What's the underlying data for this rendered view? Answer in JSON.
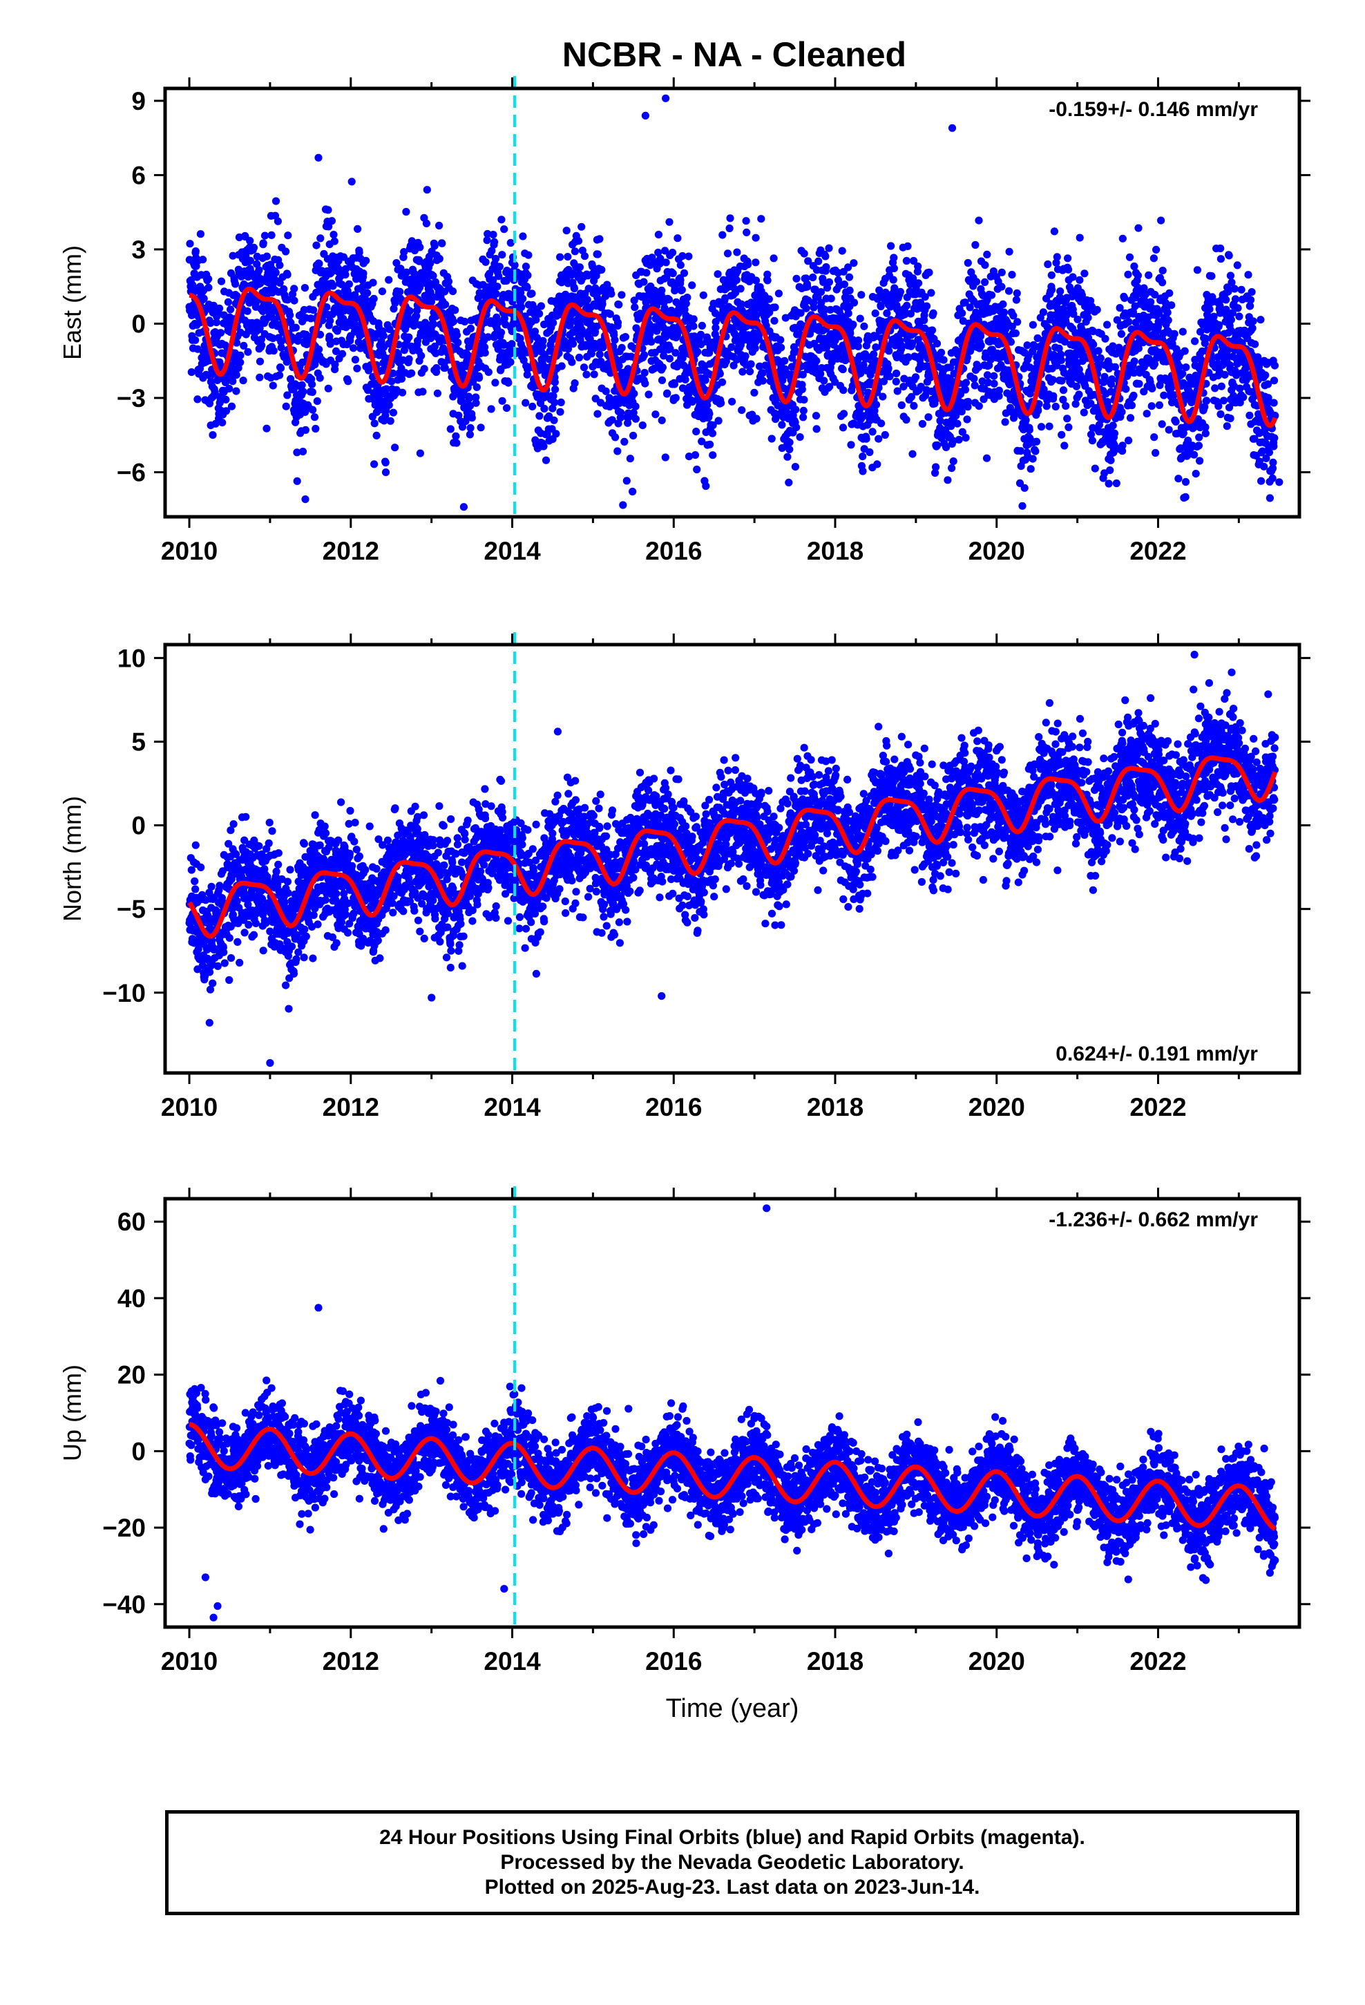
{
  "chart_data": [
    {
      "type": "scatter",
      "title": "NCBR  - NA - Cleaned",
      "ylabel": "East (mm)",
      "xlabel": "",
      "xlim": [
        2009.7,
        2023.75
      ],
      "ylim": [
        -7.8,
        9.5
      ],
      "xticks": [
        2010,
        2012,
        2014,
        2016,
        2018,
        2020,
        2022
      ],
      "yticks": [
        -6,
        -3,
        0,
        3,
        6,
        9
      ],
      "ytick_labels": [
        "−6",
        "−3",
        "0",
        "3",
        "6",
        "9"
      ],
      "rate_label": "-0.159+/- 0.146 mm/yr",
      "rate_position": "top-right",
      "break_year": 2014.03,
      "series": [
        {
          "name": "Final Orbits",
          "color": "#0000ff",
          "kind": "points",
          "model": {
            "offset": 0.2,
            "trend": -0.159,
            "annual": 1.6,
            "annual_phase": 0.62,
            "semi": 0.6,
            "noise": 1.5
          }
        },
        {
          "name": "Model fit",
          "color": "#ff0000",
          "kind": "line",
          "model": {
            "offset": 0.2,
            "trend": -0.159,
            "annual": 1.6,
            "annual_phase": 0.62,
            "semi": 0.6
          }
        }
      ],
      "outliers": [
        [
          2015.65,
          8.4
        ],
        [
          2015.9,
          9.1
        ],
        [
          2019.45,
          7.9
        ],
        [
          2011.6,
          6.7
        ],
        [
          2013.4,
          -7.4
        ],
        [
          2023.5,
          -6.4
        ]
      ]
    },
    {
      "type": "scatter",
      "title": "",
      "ylabel": "North (mm)",
      "xlabel": "",
      "xlim": [
        2009.7,
        2023.75
      ],
      "ylim": [
        -14.8,
        10.8
      ],
      "xticks": [
        2010,
        2012,
        2014,
        2016,
        2018,
        2020,
        2022
      ],
      "yticks": [
        -10,
        -5,
        0,
        5,
        10
      ],
      "ytick_labels": [
        "−10",
        "−5",
        "0",
        "5",
        "10"
      ],
      "rate_label": "0.624+/- 0.191 mm/yr",
      "rate_position": "bottom-right",
      "break_year": 2014.03,
      "series": [
        {
          "name": "Final Orbits",
          "color": "#0000ff",
          "kind": "points",
          "model": {
            "offset": -5.0,
            "trend": 0.624,
            "annual": 1.4,
            "annual_phase": 0.5,
            "semi": 0.4,
            "noise": 1.6
          }
        },
        {
          "name": "Model fit",
          "color": "#ff0000",
          "kind": "line",
          "model": {
            "offset": -5.0,
            "trend": 0.624,
            "annual": 1.4,
            "annual_phase": 0.5,
            "semi": 0.4
          }
        }
      ],
      "outliers": [
        [
          2010.25,
          -11.8
        ],
        [
          2011.0,
          -14.2
        ],
        [
          2015.85,
          -10.2
        ],
        [
          2022.45,
          10.2
        ],
        [
          2013.0,
          -10.3
        ]
      ]
    },
    {
      "type": "scatter",
      "title": "",
      "ylabel": "Up (mm)",
      "xlabel": "Time (year)",
      "xlim": [
        2009.7,
        2023.75
      ],
      "ylim": [
        -46,
        66
      ],
      "xticks": [
        2010,
        2012,
        2014,
        2016,
        2018,
        2020,
        2022
      ],
      "yticks": [
        -40,
        -20,
        0,
        20,
        40,
        60
      ],
      "ytick_labels": [
        "−40",
        "−20",
        "0",
        "20",
        "40",
        "60"
      ],
      "rate_label": "-1.236+/- 0.662 mm/yr",
      "rate_position": "top-right",
      "break_year": 2014.03,
      "series": [
        {
          "name": "Final Orbits",
          "color": "#0000ff",
          "kind": "points",
          "model": {
            "offset": 1.5,
            "trend": -1.236,
            "annual": 5.5,
            "annual_phase": 0.75,
            "semi": 0,
            "noise": 5.0
          }
        },
        {
          "name": "Model fit",
          "color": "#ff0000",
          "kind": "line",
          "model": {
            "offset": 1.5,
            "trend": -1.236,
            "annual": 5.5,
            "annual_phase": 0.75,
            "semi": 0
          }
        }
      ],
      "outliers": [
        [
          2017.15,
          63.5
        ],
        [
          2011.6,
          37.5
        ],
        [
          2010.3,
          -43.5
        ],
        [
          2010.35,
          -40.5
        ],
        [
          2010.2,
          -33
        ],
        [
          2013.9,
          -36
        ],
        [
          2020.5,
          -27.5
        ]
      ]
    }
  ],
  "footer": {
    "line1": "24 Hour Positions Using Final Orbits (blue) and Rapid Orbits (magenta).",
    "line2": "Processed by the Nevada Geodetic Laboratory.",
    "line3": "Plotted on 2025-Aug-23. Last data on 2023-Jun-14."
  },
  "colors": {
    "points": "#0000ff",
    "fit": "#ff0000",
    "break_line": "#00e5ee",
    "frame": "#000000"
  }
}
